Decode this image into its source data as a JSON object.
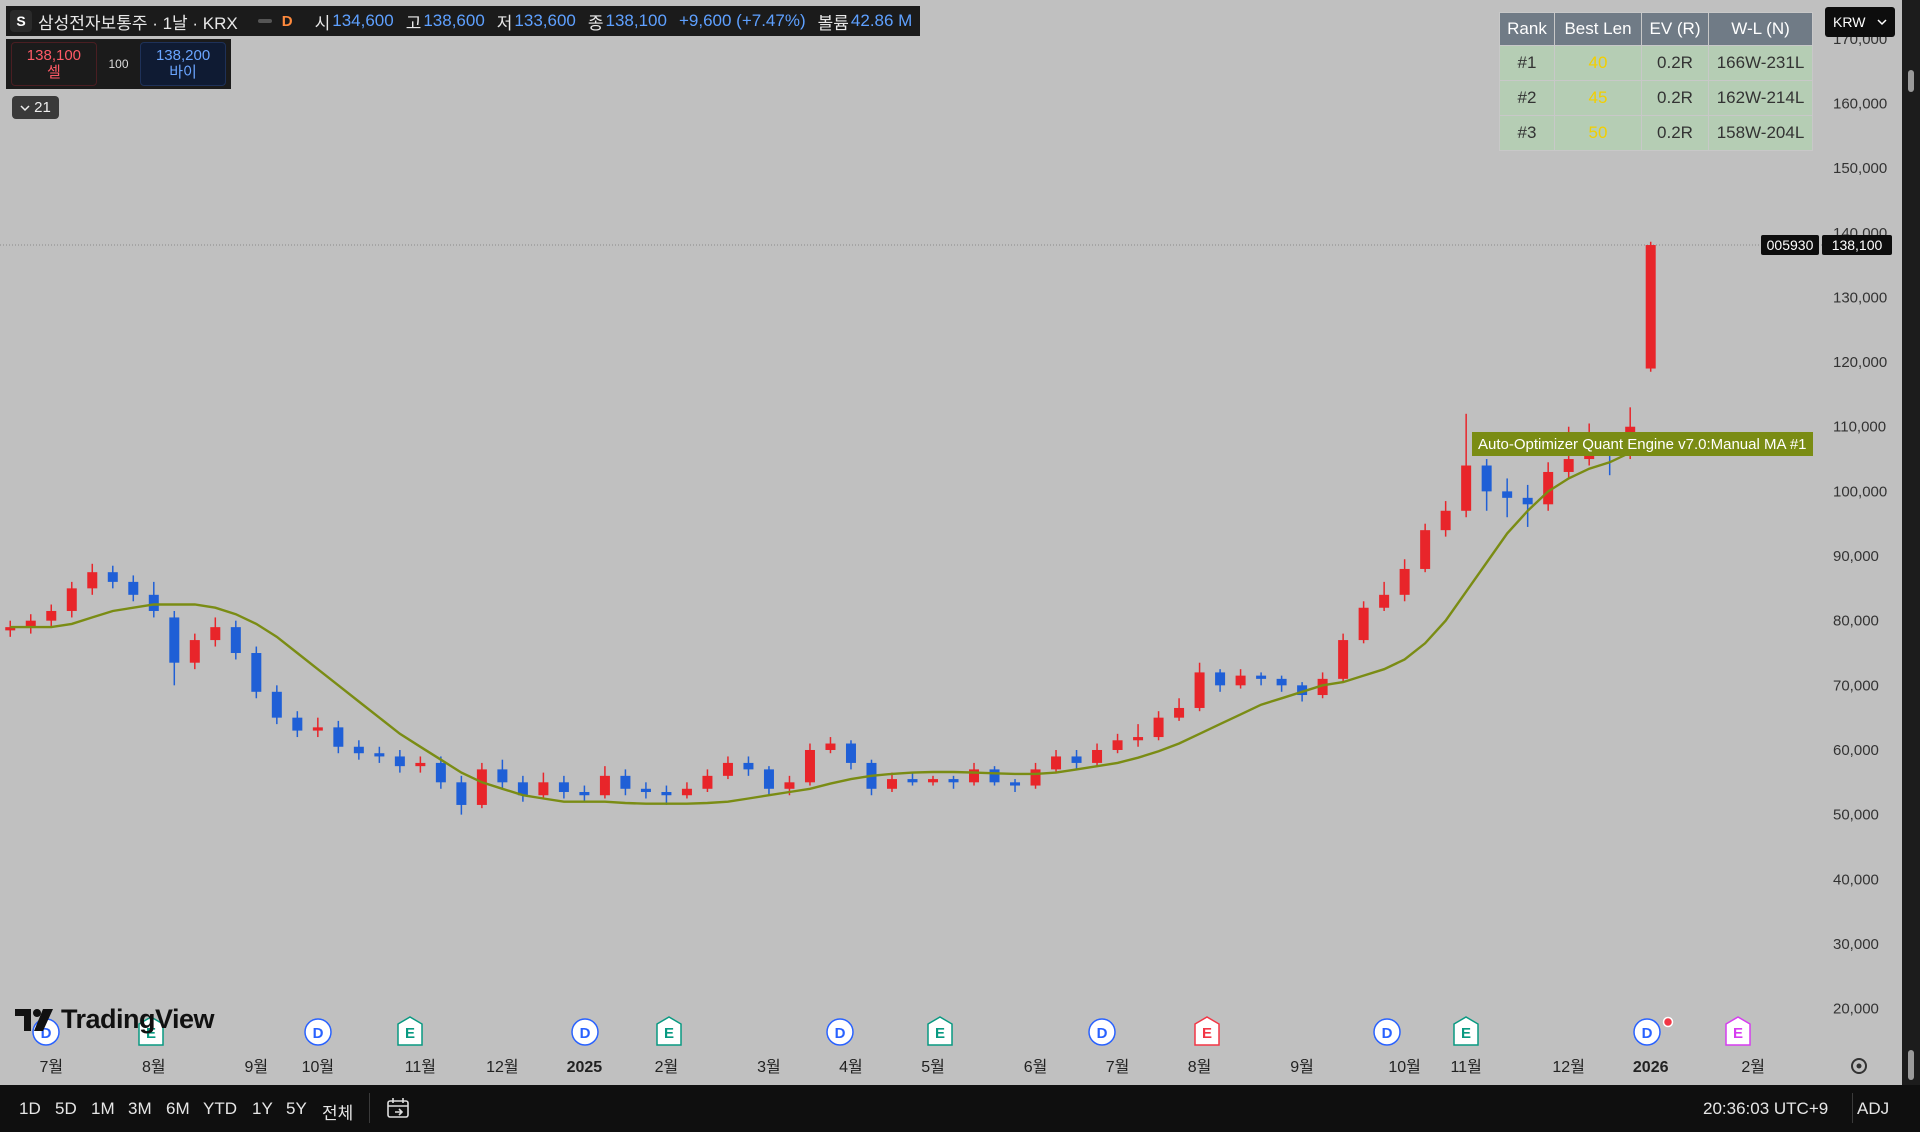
{
  "header": {
    "icon": "S",
    "symbol": "삼성전자보통주 · 1날 · KRX",
    "badge": "D",
    "ohlc": [
      {
        "key": "시",
        "value": "134,600"
      },
      {
        "key": "고",
        "value": "138,600"
      },
      {
        "key": "저",
        "value": "133,600"
      },
      {
        "key": "종",
        "value": "138,100"
      }
    ],
    "change": "+9,600 (+7.47%)",
    "volume_key": "볼륨",
    "volume": "42.86 M"
  },
  "trade": {
    "sell_price": "138,100",
    "sell": "셀",
    "qty": "100",
    "buy_price": "138,200",
    "buy": "바이"
  },
  "collapse": "21",
  "currency": "KRW",
  "table": {
    "columns": [
      "Rank",
      "Best Len",
      "EV (R)",
      "W-L (N)"
    ],
    "rows": [
      [
        "#1",
        "40",
        "0.2R",
        "166W-231L"
      ],
      [
        "#2",
        "45",
        "0.2R",
        "162W-214L"
      ],
      [
        "#3",
        "50",
        "0.2R",
        "158W-204L"
      ]
    ]
  },
  "chart_data": {
    "type": "candlestick",
    "grid": false,
    "up_color": "#e8252a",
    "down_color": "#1f5fd6",
    "categories": [
      null,
      null,
      "7월",
      null,
      null,
      null,
      null,
      "8월",
      null,
      null,
      null,
      null,
      "9월",
      null,
      null,
      "10월",
      null,
      null,
      null,
      null,
      "11월",
      null,
      null,
      null,
      "12월",
      null,
      null,
      null,
      "2025",
      null,
      null,
      null,
      "2월",
      null,
      null,
      null,
      null,
      "3월",
      null,
      null,
      null,
      "4월",
      null,
      null,
      null,
      "5월",
      null,
      null,
      null,
      null,
      "6월",
      null,
      null,
      null,
      "7월",
      null,
      null,
      null,
      "8월",
      null,
      null,
      null,
      null,
      "9월",
      null,
      null,
      null,
      null,
      "10월",
      null,
      null,
      "11월",
      null,
      null,
      null,
      null,
      "12월",
      null,
      null,
      null,
      "2026",
      null,
      null,
      null,
      null,
      "2월",
      null,
      null,
      null
    ],
    "open": [
      78500,
      79000,
      80000,
      81500,
      85000,
      87500,
      86000,
      84000,
      80500,
      73500,
      77000,
      79000,
      75000,
      69000,
      65000,
      63000,
      63500,
      60500,
      59500,
      59000,
      57500,
      58000,
      55000,
      51500,
      57000,
      55000,
      53000,
      55000,
      53500,
      53000,
      56000,
      54000,
      53500,
      53000,
      54000,
      56000,
      58000,
      57000,
      54000,
      55000,
      60000,
      61000,
      58000,
      54000,
      55500,
      55000,
      55500,
      55000,
      57000,
      55000,
      54500,
      57000,
      59000,
      58000,
      60000,
      61500,
      62000,
      65000,
      66500,
      72000,
      70000,
      71500,
      71000,
      70000,
      68500,
      71000,
      77000,
      82000,
      84000,
      88000,
      94000,
      97000,
      104000,
      100000,
      99000,
      98000,
      103000,
      105000,
      108000,
      106000,
      119000,
      null,
      null,
      null,
      null,
      null,
      null,
      null,
      null
    ],
    "high": [
      80000,
      81000,
      82500,
      86000,
      88800,
      88500,
      87000,
      86000,
      81500,
      78000,
      80500,
      80000,
      76000,
      70000,
      66000,
      65000,
      64500,
      61500,
      60500,
      60000,
      59000,
      59000,
      56000,
      58000,
      58500,
      56000,
      56500,
      56000,
      54500,
      57500,
      57000,
      55000,
      54500,
      55000,
      57000,
      59000,
      59000,
      57500,
      56000,
      61000,
      62000,
      61500,
      58500,
      56500,
      56500,
      56000,
      56000,
      58000,
      57500,
      55500,
      58000,
      60000,
      60000,
      61000,
      62500,
      64000,
      66000,
      68000,
      73500,
      72500,
      72500,
      72000,
      71500,
      70500,
      72000,
      78000,
      83000,
      86000,
      89500,
      95000,
      98500,
      112000,
      105000,
      102000,
      101000,
      104500,
      110000,
      110500,
      109000,
      113000,
      138600,
      null,
      null,
      null,
      null,
      null,
      null,
      null,
      null
    ],
    "low": [
      77500,
      78000,
      79000,
      80500,
      84000,
      85000,
      83000,
      80500,
      70000,
      72500,
      76000,
      74000,
      68000,
      64000,
      62000,
      62000,
      59500,
      58500,
      58000,
      56500,
      56500,
      54000,
      50000,
      51000,
      54000,
      52000,
      52500,
      52500,
      52000,
      52500,
      53000,
      52500,
      51500,
      52500,
      53500,
      55500,
      56000,
      53000,
      53000,
      54500,
      59500,
      57000,
      53000,
      53500,
      54500,
      54500,
      54000,
      54500,
      54500,
      53500,
      54000,
      56500,
      57000,
      57500,
      59500,
      60500,
      61500,
      64500,
      66000,
      69000,
      69500,
      70000,
      69000,
      67500,
      68000,
      70500,
      76500,
      81500,
      83000,
      87500,
      93000,
      96000,
      97000,
      96000,
      94500,
      97000,
      102000,
      104000,
      102500,
      105000,
      118500,
      null,
      null,
      null,
      null,
      null,
      null,
      null,
      null
    ],
    "close": [
      79000,
      80000,
      81500,
      85000,
      87500,
      86000,
      84000,
      81500,
      73500,
      77000,
      79000,
      75000,
      69000,
      65000,
      63000,
      63500,
      60500,
      59500,
      59000,
      57500,
      58000,
      55000,
      51500,
      57000,
      55000,
      53000,
      55000,
      53500,
      53000,
      56000,
      54000,
      53500,
      53000,
      54000,
      56000,
      58000,
      57000,
      54000,
      55000,
      60000,
      61000,
      58000,
      54000,
      55500,
      55000,
      55500,
      55000,
      57000,
      55000,
      54500,
      57000,
      59000,
      58000,
      60000,
      61500,
      62000,
      65000,
      66500,
      72000,
      70000,
      71500,
      71000,
      70000,
      68500,
      71000,
      77000,
      82000,
      84000,
      88000,
      94000,
      97000,
      104000,
      100000,
      99000,
      98000,
      103000,
      105000,
      108000,
      106000,
      110000,
      138100,
      null,
      null,
      null,
      null,
      null,
      null,
      null,
      null
    ],
    "series": [
      {
        "name": "Auto-Optimizer Quant Engine v7.0:Manual MA #1",
        "color": "#7a8c14",
        "values": [
          79000,
          79000,
          79000,
          79500,
          80500,
          81500,
          82000,
          82500,
          82500,
          82500,
          82000,
          81000,
          79500,
          77500,
          75000,
          72500,
          70000,
          67500,
          65000,
          62500,
          60500,
          58500,
          56500,
          55000,
          54000,
          53000,
          52500,
          52000,
          52000,
          52000,
          51800,
          51700,
          51700,
          51700,
          51800,
          52000,
          52500,
          53000,
          53500,
          54000,
          54800,
          55500,
          56000,
          56300,
          56500,
          56600,
          56600,
          56500,
          56400,
          56300,
          56300,
          56500,
          57000,
          57500,
          58000,
          58800,
          59800,
          61000,
          62500,
          64000,
          65500,
          67000,
          68000,
          69000,
          70000,
          70500,
          71500,
          72500,
          74000,
          76500,
          80000,
          84500,
          89000,
          93500,
          97000,
          100000,
          102000,
          103500,
          104500,
          106000,
          107000,
          null,
          null,
          null,
          null,
          null,
          null,
          null,
          null
        ]
      }
    ],
    "ylim": [
      17000,
      176000
    ],
    "yticks": [
      {
        "value": 20000,
        "label": "20,000"
      },
      {
        "value": 30000,
        "label": "30,000"
      },
      {
        "value": 40000,
        "label": "40,000"
      },
      {
        "value": 50000,
        "label": "50,000"
      },
      {
        "value": 60000,
        "label": "60,000"
      },
      {
        "value": 70000,
        "label": "70,000"
      },
      {
        "value": 80000,
        "label": "80,000"
      },
      {
        "value": 90000,
        "label": "90,000"
      },
      {
        "value": 100000,
        "label": "100,000"
      },
      {
        "value": 110000,
        "label": "110,000"
      },
      {
        "value": 120000,
        "label": "120,000"
      },
      {
        "value": 130000,
        "label": "130,000"
      },
      {
        "value": 140000,
        "label": "140,000"
      },
      {
        "value": 150000,
        "label": "150,000"
      },
      {
        "value": 160000,
        "label": "160,000"
      },
      {
        "value": 170000,
        "label": "170,000"
      }
    ],
    "symbol_code": "005930",
    "last_price": {
      "value": 138100,
      "label": "138,100"
    }
  },
  "events": [
    {
      "label": "D"
    },
    {
      "label": "E"
    },
    {
      "label": "D"
    },
    {
      "label": "E"
    },
    {
      "label": "D"
    },
    {
      "label": "E"
    },
    {
      "label": "D"
    },
    {
      "label": "E"
    },
    {
      "label": "D"
    },
    {
      "label": "E"
    },
    {
      "label": "D"
    },
    {
      "label": "E"
    },
    {
      "label": "D"
    },
    {
      "label": "E"
    }
  ],
  "logo": "TradingView",
  "toolbar": {
    "ranges": [
      "1D",
      "5D",
      "1M",
      "3M",
      "6M",
      "YTD",
      "1Y",
      "5Y",
      "전체"
    ],
    "clock": "20:36:03 UTC+9",
    "adj": "ADJ"
  }
}
